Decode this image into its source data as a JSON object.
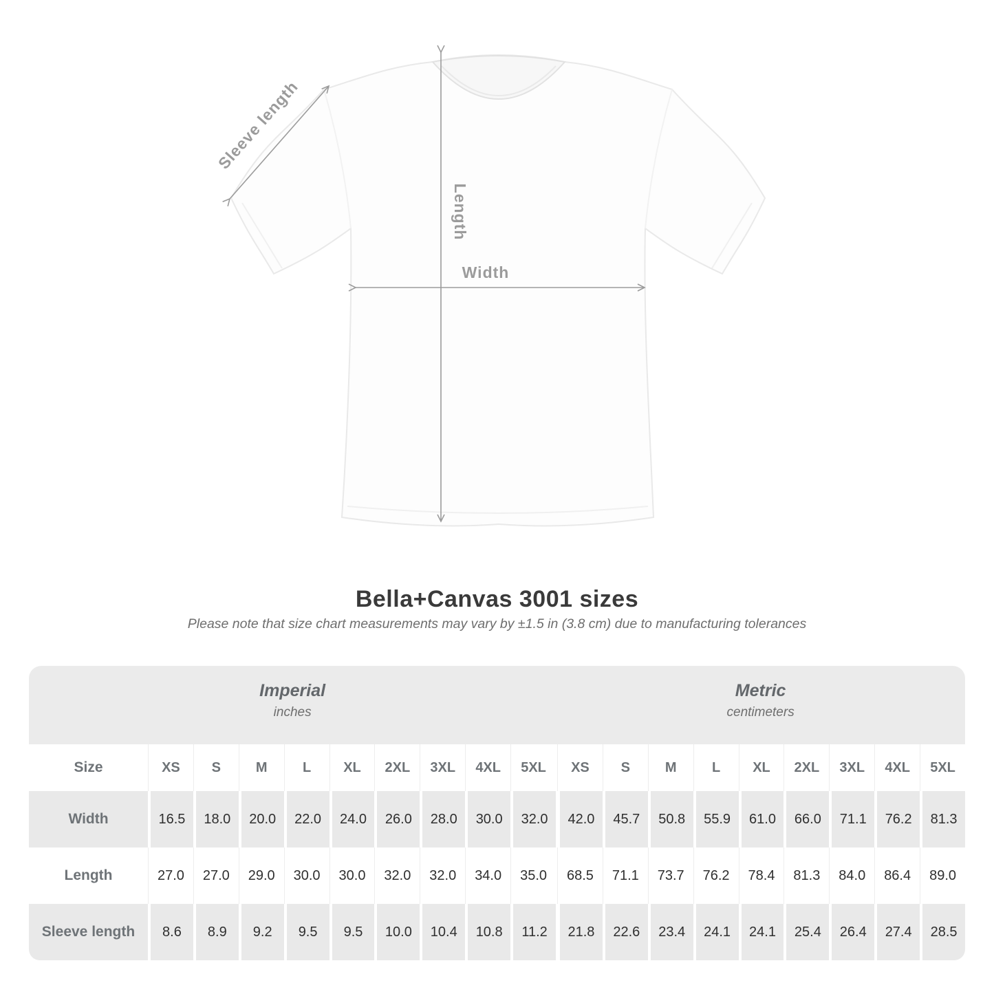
{
  "diagram": {
    "sleeve_length_label": "Sleeve length",
    "length_label": "Length",
    "width_label": "Width"
  },
  "title": "Bella+Canvas 3001 sizes",
  "subtitle": "Please note that size chart measurements may vary by ±1.5 in (3.8 cm) due to manufacturing tolerances",
  "table": {
    "size_header": "Size",
    "groups": [
      {
        "label": "Imperial",
        "unit": "inches"
      },
      {
        "label": "Metric",
        "unit": "centimeters"
      }
    ],
    "sizes": [
      "XS",
      "S",
      "M",
      "L",
      "XL",
      "2XL",
      "3XL",
      "4XL",
      "5XL"
    ],
    "rows": [
      {
        "label": "Width",
        "imperial": [
          "16.5",
          "18.0",
          "20.0",
          "22.0",
          "24.0",
          "26.0",
          "28.0",
          "30.0",
          "32.0"
        ],
        "metric": [
          "42.0",
          "45.7",
          "50.8",
          "55.9",
          "61.0",
          "66.0",
          "71.1",
          "76.2",
          "81.3"
        ]
      },
      {
        "label": "Length",
        "imperial": [
          "27.0",
          "27.0",
          "29.0",
          "30.0",
          "30.0",
          "32.0",
          "32.0",
          "34.0",
          "35.0"
        ],
        "metric": [
          "68.5",
          "71.1",
          "73.7",
          "76.2",
          "78.4",
          "81.3",
          "84.0",
          "86.4",
          "89.0"
        ]
      },
      {
        "label": "Sleeve length",
        "imperial": [
          "8.6",
          "8.9",
          "9.2",
          "9.5",
          "9.5",
          "10.0",
          "10.4",
          "10.8",
          "11.2"
        ],
        "metric": [
          "21.8",
          "22.6",
          "23.4",
          "24.1",
          "24.1",
          "25.4",
          "26.4",
          "27.4",
          "28.5"
        ]
      }
    ]
  },
  "chart_data": {
    "type": "table",
    "title": "Bella+Canvas 3001 sizes",
    "note": "Please note that size chart measurements may vary by ±1.5 in (3.8 cm) due to manufacturing tolerances",
    "column_groups": [
      {
        "label": "Imperial",
        "unit": "inches",
        "columns": [
          "XS",
          "S",
          "M",
          "L",
          "XL",
          "2XL",
          "3XL",
          "4XL",
          "5XL"
        ]
      },
      {
        "label": "Metric",
        "unit": "centimeters",
        "columns": [
          "XS",
          "S",
          "M",
          "L",
          "XL",
          "2XL",
          "3XL",
          "4XL",
          "5XL"
        ]
      }
    ],
    "rows": [
      {
        "label": "Width",
        "imperial": [
          16.5,
          18.0,
          20.0,
          22.0,
          24.0,
          26.0,
          28.0,
          30.0,
          32.0
        ],
        "metric": [
          42.0,
          45.7,
          50.8,
          55.9,
          61.0,
          66.0,
          71.1,
          76.2,
          81.3
        ]
      },
      {
        "label": "Length",
        "imperial": [
          27.0,
          27.0,
          29.0,
          30.0,
          30.0,
          32.0,
          32.0,
          34.0,
          35.0
        ],
        "metric": [
          68.5,
          71.1,
          73.7,
          76.2,
          78.4,
          81.3,
          84.0,
          86.4,
          89.0
        ]
      },
      {
        "label": "Sleeve length",
        "imperial": [
          8.6,
          8.9,
          9.2,
          9.5,
          9.5,
          10.0,
          10.4,
          10.8,
          11.2
        ],
        "metric": [
          21.8,
          22.6,
          23.4,
          24.1,
          24.1,
          25.4,
          26.4,
          27.4,
          28.5
        ]
      }
    ]
  },
  "colors": {
    "annotation_gray": "#9b9b9b",
    "table_band_gray": "#ebebeb",
    "table_row_gray": "#e9e9e9",
    "title_dark": "#3a3a3a",
    "label_gray": "#6e7377",
    "value_dark": "#2f2f2f"
  }
}
